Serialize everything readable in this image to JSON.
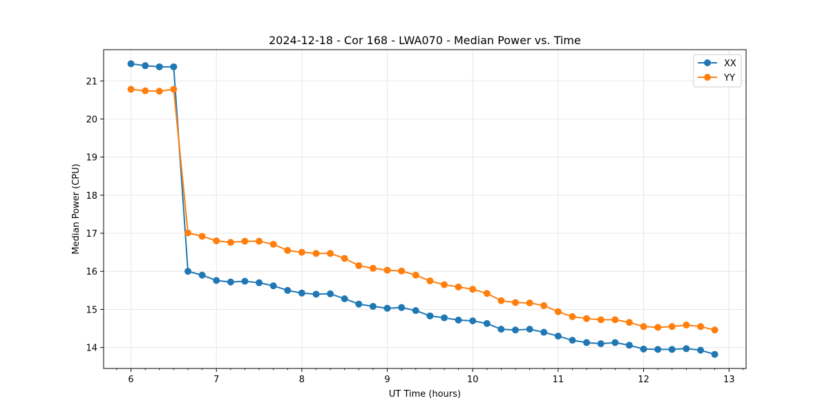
{
  "chart_data": {
    "type": "line",
    "title": "2024-12-18 - Cor 168 - LWA070 - Median Power vs. Time",
    "xlabel": "UT Time (hours)",
    "ylabel": "Median Power (CPU)",
    "xlim": [
      5.68,
      13.2
    ],
    "ylim": [
      13.45,
      21.82
    ],
    "xticks": [
      "6",
      "7",
      "8",
      "9",
      "10",
      "11",
      "12",
      "13"
    ],
    "yticks": [
      "14",
      "15",
      "16",
      "17",
      "18",
      "19",
      "20",
      "21"
    ],
    "grid": true,
    "legend": "top-right",
    "x": [
      6.0,
      6.167,
      6.333,
      6.5,
      6.667,
      6.833,
      7.0,
      7.167,
      7.333,
      7.5,
      7.667,
      7.833,
      8.0,
      8.167,
      8.333,
      8.5,
      8.667,
      8.833,
      9.0,
      9.167,
      9.333,
      9.5,
      9.667,
      9.833,
      10.0,
      10.167,
      10.333,
      10.5,
      10.667,
      10.833,
      11.0,
      11.167,
      11.333,
      11.5,
      11.667,
      11.833,
      12.0,
      12.167,
      12.333,
      12.5,
      12.667,
      12.833
    ],
    "series": [
      {
        "name": "XX",
        "color": "#1f77b4",
        "values": [
          21.45,
          21.4,
          21.37,
          21.37,
          16.0,
          15.9,
          15.76,
          15.72,
          15.74,
          15.7,
          15.62,
          15.5,
          15.43,
          15.4,
          15.41,
          15.28,
          15.14,
          15.08,
          15.03,
          15.05,
          14.97,
          14.83,
          14.78,
          14.72,
          14.7,
          14.63,
          14.48,
          14.46,
          14.48,
          14.4,
          14.3,
          14.19,
          14.13,
          14.1,
          14.13,
          14.06,
          13.96,
          13.95,
          13.95,
          13.97,
          13.93,
          13.82
        ]
      },
      {
        "name": "YY",
        "color": "#ff7f0e",
        "values": [
          20.78,
          20.74,
          20.73,
          20.78,
          17.01,
          16.92,
          16.8,
          16.76,
          16.79,
          16.79,
          16.71,
          16.55,
          16.5,
          16.47,
          16.47,
          16.34,
          16.15,
          16.08,
          16.03,
          16.01,
          15.9,
          15.75,
          15.65,
          15.59,
          15.53,
          15.42,
          15.23,
          15.18,
          15.17,
          15.1,
          14.94,
          14.81,
          14.76,
          14.73,
          14.73,
          14.66,
          14.55,
          14.53,
          14.55,
          14.59,
          14.55,
          14.46
        ]
      }
    ]
  }
}
